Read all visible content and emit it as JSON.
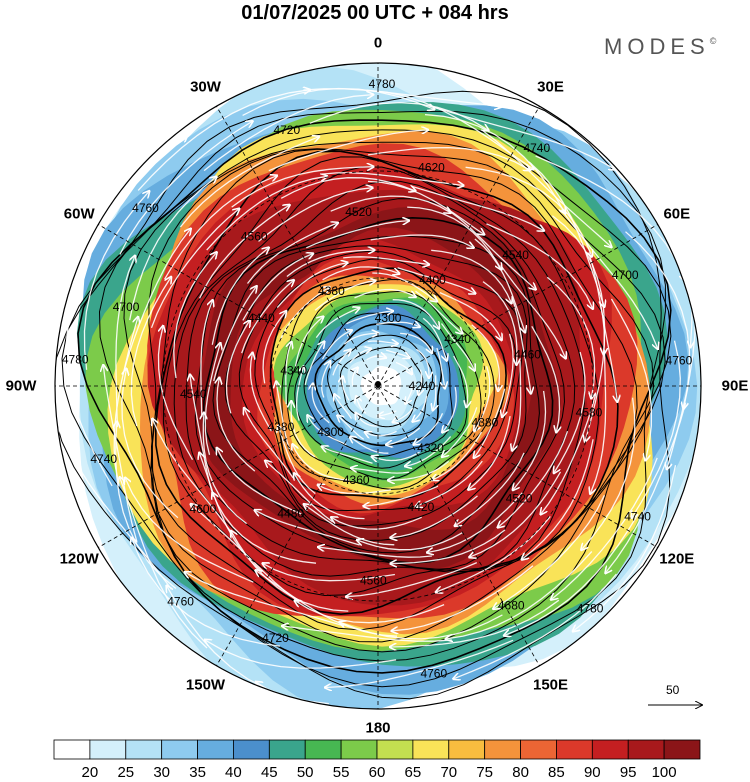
{
  "title": "01/07/2025  00 UTC  + 084 hrs",
  "brand": "MODES",
  "brand_mark": "©",
  "longitude_labels": [
    {
      "text": "0",
      "lon": 0
    },
    {
      "text": "30E",
      "lon": 30
    },
    {
      "text": "60E",
      "lon": 60
    },
    {
      "text": "90E",
      "lon": 90
    },
    {
      "text": "120E",
      "lon": 120
    },
    {
      "text": "150E",
      "lon": 150
    },
    {
      "text": "180",
      "lon": 180
    },
    {
      "text": "150W",
      "lon": -150
    },
    {
      "text": "120W",
      "lon": -120
    },
    {
      "text": "90W",
      "lon": -90
    },
    {
      "text": "60W",
      "lon": -60
    },
    {
      "text": "30W",
      "lon": -30
    }
  ],
  "contour_labels": [
    "4240",
    "4300",
    "4300",
    "4320",
    "4340",
    "4340",
    "4360",
    "4380",
    "4380",
    "4380",
    "4400",
    "4420",
    "4440",
    "4460",
    "4480",
    "4520",
    "4520",
    "4540",
    "4540",
    "4560",
    "4560",
    "4580",
    "4600",
    "4620",
    "4680",
    "4700",
    "4700",
    "4720",
    "4720",
    "4740",
    "4740",
    "4740",
    "4760",
    "4760",
    "4760",
    "4760",
    "4780",
    "4780",
    "4780"
  ],
  "reference_vector": {
    "value": "50"
  },
  "colorbar": {
    "levels": [
      "20",
      "25",
      "30",
      "35",
      "40",
      "45",
      "50",
      "55",
      "60",
      "65",
      "70",
      "75",
      "80",
      "85",
      "90",
      "95",
      "100"
    ],
    "colors": [
      "#ffffff",
      "#d4f0fb",
      "#b4e2f6",
      "#8ecbef",
      "#66addf",
      "#4b8fcc",
      "#3aa58c",
      "#47b752",
      "#7ccb4a",
      "#c3df50",
      "#f9e358",
      "#f8bd3f",
      "#f4933b",
      "#ec6534",
      "#db392a",
      "#c41f21",
      "#a8191c",
      "#8b1518"
    ]
  }
}
